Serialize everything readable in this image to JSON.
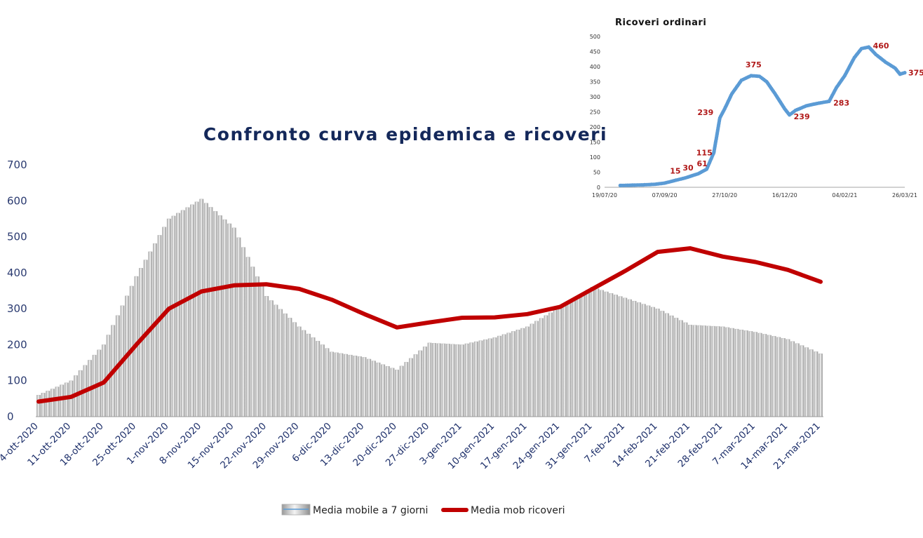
{
  "chart_data": [
    {
      "type": "bar",
      "title": "Confronto curva epidemica e ricoveri",
      "xlabel": "",
      "ylabel": "",
      "ylim": [
        0,
        700
      ],
      "yticks": [
        0,
        100,
        200,
        300,
        400,
        500,
        600,
        700
      ],
      "legend_position": "bottom",
      "grid": false,
      "categories": [
        "4-ott-2020",
        "11-ott-2020",
        "18-ott-2020",
        "25-ott-2020",
        "1-nov-2020",
        "8-nov-2020",
        "15-nov-2020",
        "22-nov-2020",
        "29-nov-2020",
        "6-dic-2020",
        "13-dic-2020",
        "20-dic-2020",
        "27-dic-2020",
        "3-gen-2021",
        "10-gen-2021",
        "17-gen-2021",
        "24-gen-2021",
        "31-gen-2021",
        "7-feb-2021",
        "14-feb-2021",
        "21-feb-2021",
        "28-feb-2021",
        "7-mar-2021",
        "14-mar-2021",
        "21-mar-2021"
      ],
      "series": [
        {
          "name": "Media mobile a 7 giorni",
          "kind": "bars",
          "color": "#d2d2d2",
          "values": [
            60,
            100,
            200,
            390,
            550,
            605,
            525,
            335,
            250,
            180,
            165,
            130,
            205,
            200,
            220,
            250,
            305,
            360,
            330,
            300,
            255,
            250,
            235,
            215,
            175
          ]
        },
        {
          "name": "Media mob ricoveri",
          "kind": "line",
          "color": "#c00000",
          "values": [
            42,
            55,
            95,
            200,
            300,
            348,
            365,
            368,
            355,
            325,
            285,
            248,
            262,
            275,
            276,
            285,
            305,
            355,
            405,
            458,
            468,
            445,
            430,
            408,
            375
          ]
        }
      ]
    },
    {
      "type": "scatter",
      "title": "Ricoveri ordinari",
      "ylim": [
        0,
        500
      ],
      "yticks": [
        0,
        50,
        100,
        150,
        200,
        250,
        300,
        350,
        400,
        450,
        500
      ],
      "xticks": [
        "19/07/20",
        "07/09/20",
        "27/10/20",
        "16/12/20",
        "04/02/21",
        "26/03/21"
      ],
      "color": "#5b9bd5",
      "annotations": [
        "15",
        "30",
        "61",
        "115",
        "239",
        "375",
        "239",
        "283",
        "460",
        "375"
      ],
      "points": [
        {
          "x": "01/08/20",
          "y": 6
        },
        {
          "x": "10/08/20",
          "y": 7
        },
        {
          "x": "20/08/20",
          "y": 8
        },
        {
          "x": "30/08/20",
          "y": 10
        },
        {
          "x": "07/09/20",
          "y": 14
        },
        {
          "x": "15/09/20",
          "y": 22
        },
        {
          "x": "25/09/20",
          "y": 32
        },
        {
          "x": "05/10/20",
          "y": 45
        },
        {
          "x": "12/10/20",
          "y": 60
        },
        {
          "x": "18/10/20",
          "y": 115
        },
        {
          "x": "23/10/20",
          "y": 230
        },
        {
          "x": "27/10/20",
          "y": 260
        },
        {
          "x": "02/11/20",
          "y": 310
        },
        {
          "x": "10/11/20",
          "y": 355
        },
        {
          "x": "18/11/20",
          "y": 370
        },
        {
          "x": "25/11/20",
          "y": 368
        },
        {
          "x": "01/12/20",
          "y": 350
        },
        {
          "x": "08/12/20",
          "y": 310
        },
        {
          "x": "16/12/20",
          "y": 260
        },
        {
          "x": "20/12/20",
          "y": 240
        },
        {
          "x": "25/12/20",
          "y": 255
        },
        {
          "x": "03/01/21",
          "y": 270
        },
        {
          "x": "12/01/21",
          "y": 278
        },
        {
          "x": "22/01/21",
          "y": 285
        },
        {
          "x": "28/01/21",
          "y": 330
        },
        {
          "x": "04/02/21",
          "y": 370
        },
        {
          "x": "12/02/21",
          "y": 430
        },
        {
          "x": "18/02/21",
          "y": 460
        },
        {
          "x": "24/02/21",
          "y": 465
        },
        {
          "x": "02/03/21",
          "y": 440
        },
        {
          "x": "10/03/21",
          "y": 415
        },
        {
          "x": "18/03/21",
          "y": 395
        },
        {
          "x": "22/03/21",
          "y": 375
        },
        {
          "x": "26/03/21",
          "y": 380
        }
      ]
    }
  ]
}
